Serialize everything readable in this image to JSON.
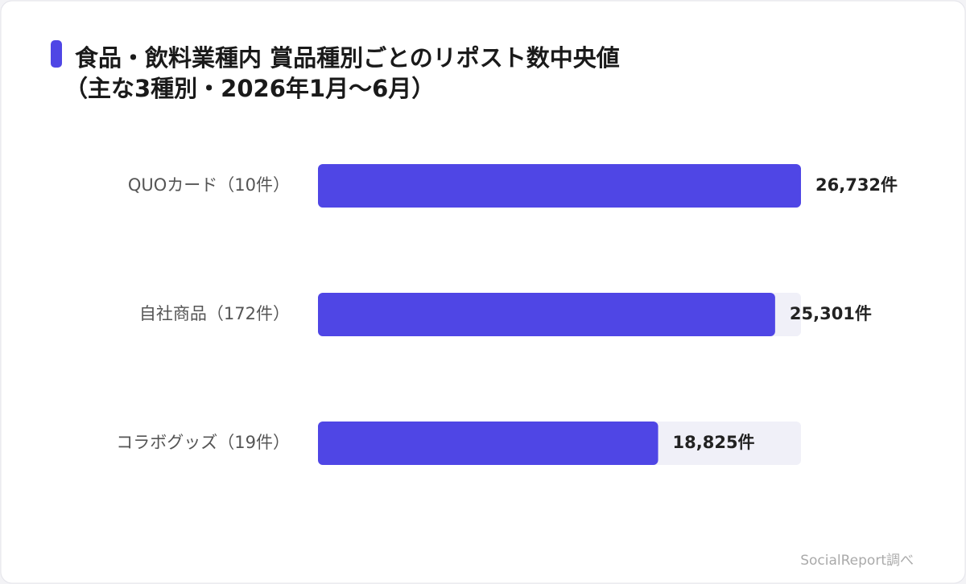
{
  "chart_data": {
    "type": "bar",
    "orientation": "horizontal",
    "title": "食品・飲料業種内 賞品種別ごとのリポスト数中央値",
    "subtitle": "（主な3種別・2026年1月〜6月）",
    "categories": [
      "QUOカード（10件）",
      "自社商品（172件）",
      "コラボグッズ（19件）"
    ],
    "values": [
      26732,
      25301,
      18825
    ],
    "value_labels": [
      "26,732件",
      "25,301件",
      "18,825件"
    ],
    "color": "#4f46e5",
    "source": "SocialReport調べ"
  }
}
